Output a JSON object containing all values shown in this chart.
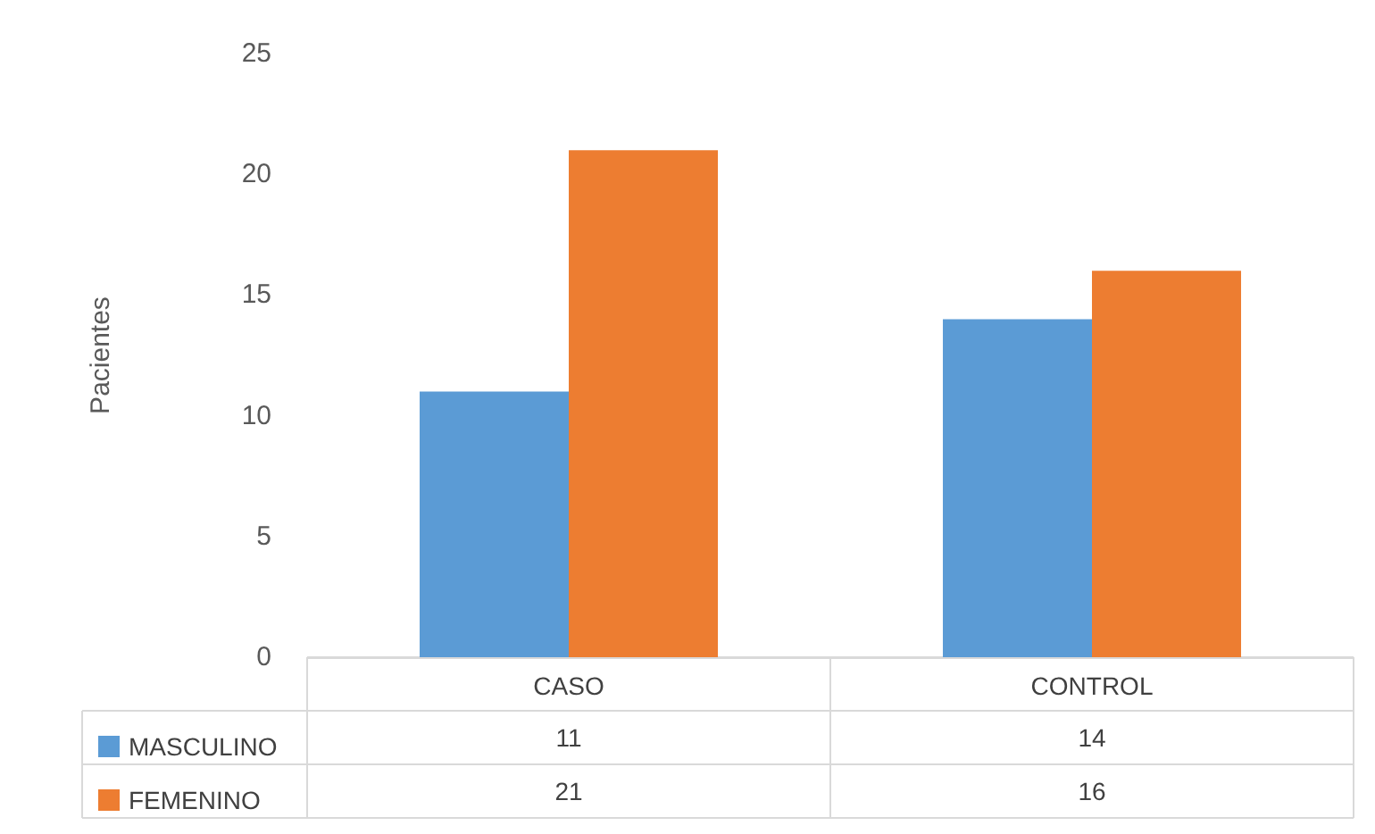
{
  "chart_data": {
    "type": "bar",
    "ylabel": "Pacientes",
    "categories": [
      "CASO",
      "CONTROL"
    ],
    "series": [
      {
        "name": "MASCULINO",
        "color": "#5b9bd5",
        "values": [
          11,
          14
        ]
      },
      {
        "name": "FEMENINO",
        "color": "#ed7d31",
        "values": [
          21,
          16
        ]
      }
    ],
    "ylim": [
      0,
      25
    ],
    "yticks": [
      0,
      5,
      10,
      15,
      20,
      25
    ],
    "grid": false,
    "legend": "bottom",
    "data_labels": true
  }
}
